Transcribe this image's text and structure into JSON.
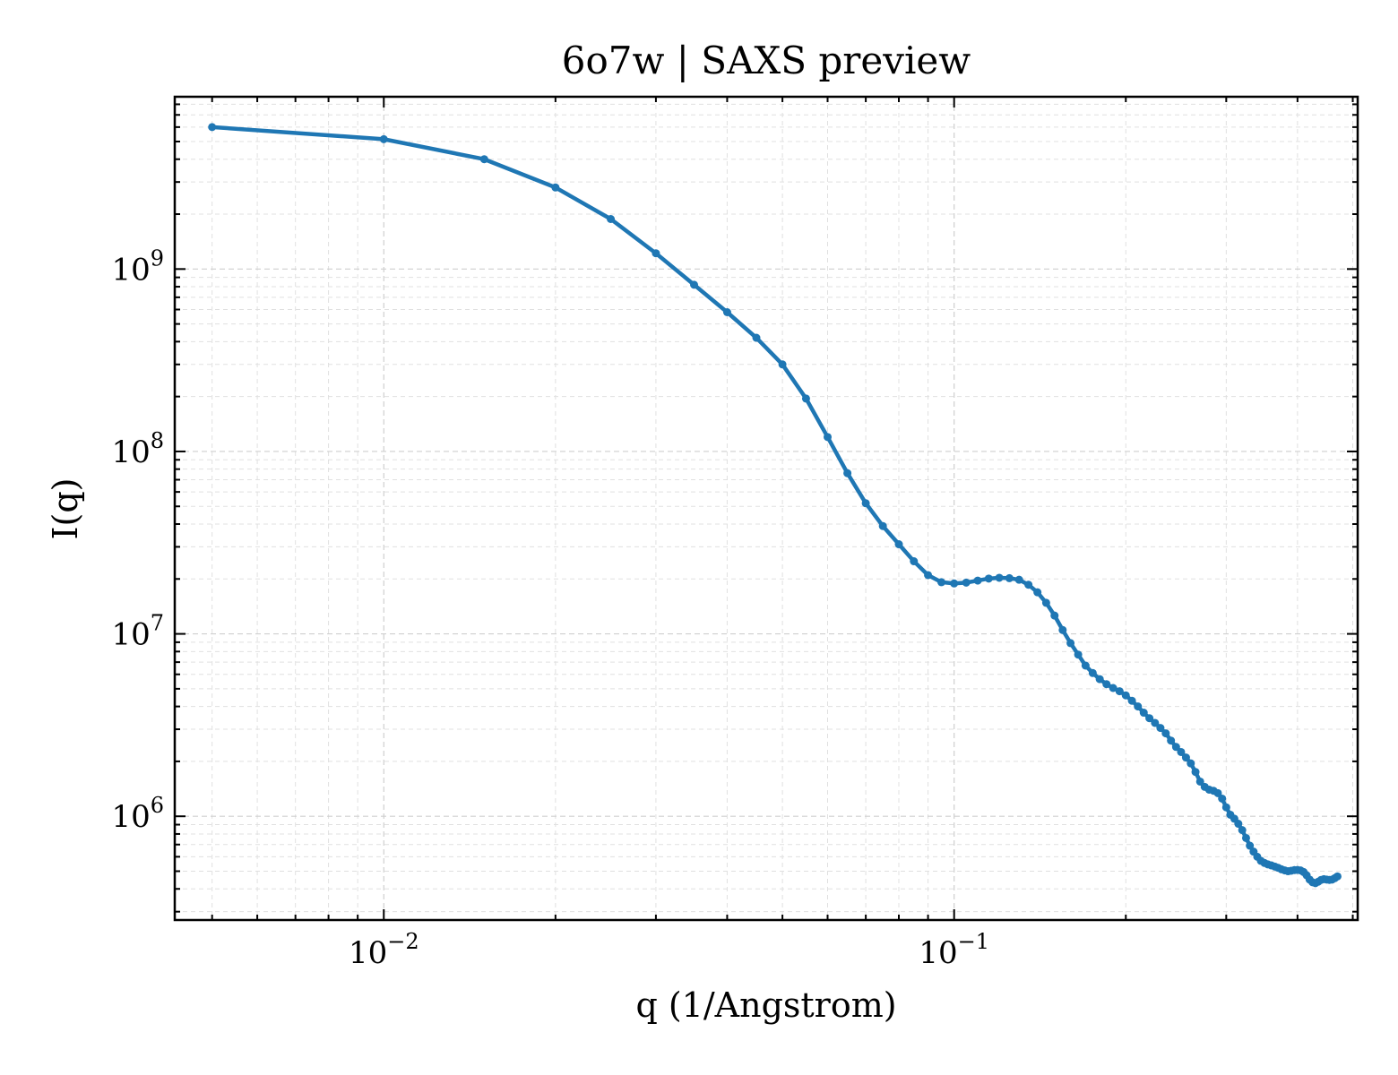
{
  "chart_data": {
    "type": "line",
    "title": "6o7w | SAXS preview",
    "xlabel": "q (1/Angstrom)",
    "ylabel": "I(q)",
    "xscale": "log",
    "yscale": "log",
    "xlim": [
      0.0043,
      0.51
    ],
    "ylim": [
      270000,
      8800000000
    ],
    "grid": true,
    "x_ticks": [
      {
        "value": 0.01,
        "base": "10",
        "exp": "−2"
      },
      {
        "value": 0.1,
        "base": "10",
        "exp": "−1"
      }
    ],
    "y_ticks": [
      {
        "value": 1000000,
        "base": "10",
        "exp": "6"
      },
      {
        "value": 10000000,
        "base": "10",
        "exp": "7"
      },
      {
        "value": 100000000,
        "base": "10",
        "exp": "8"
      },
      {
        "value": 1000000000,
        "base": "10",
        "exp": "9"
      }
    ],
    "colors": {
      "series": "#1f77b4",
      "grid": "#cfcfcf"
    },
    "series": [
      {
        "marker": "dot",
        "points": [
          [
            0.005,
            6000000000
          ],
          [
            0.01,
            5150000000
          ],
          [
            0.015,
            4000000000
          ],
          [
            0.02,
            2800000000
          ],
          [
            0.025,
            1880000000
          ],
          [
            0.03,
            1220000000
          ],
          [
            0.035,
            820000000
          ],
          [
            0.04,
            580000000
          ],
          [
            0.045,
            420000000
          ],
          [
            0.05,
            300000000
          ],
          [
            0.055,
            195000000
          ],
          [
            0.06,
            120000000
          ],
          [
            0.065,
            76000000
          ],
          [
            0.07,
            52000000
          ],
          [
            0.075,
            39000000
          ],
          [
            0.08,
            31000000
          ],
          [
            0.085,
            25000000
          ],
          [
            0.09,
            21000000
          ],
          [
            0.095,
            19200000
          ],
          [
            0.1,
            18900000
          ],
          [
            0.105,
            19100000
          ],
          [
            0.11,
            19600000
          ],
          [
            0.115,
            20100000
          ],
          [
            0.12,
            20300000
          ],
          [
            0.125,
            20200000
          ],
          [
            0.13,
            19800000
          ],
          [
            0.135,
            18600000
          ],
          [
            0.14,
            16900000
          ],
          [
            0.145,
            14800000
          ],
          [
            0.15,
            12600000
          ],
          [
            0.155,
            10500000
          ],
          [
            0.16,
            8900000
          ],
          [
            0.165,
            7700000
          ],
          [
            0.17,
            6700000
          ],
          [
            0.175,
            6100000
          ],
          [
            0.18,
            5650000
          ],
          [
            0.185,
            5300000
          ],
          [
            0.19,
            5050000
          ],
          [
            0.195,
            4850000
          ],
          [
            0.2,
            4600000
          ],
          [
            0.205,
            4300000
          ],
          [
            0.21,
            4000000
          ],
          [
            0.215,
            3700000
          ],
          [
            0.22,
            3450000
          ],
          [
            0.225,
            3250000
          ],
          [
            0.23,
            3050000
          ],
          [
            0.235,
            2850000
          ],
          [
            0.24,
            2600000
          ],
          [
            0.245,
            2400000
          ],
          [
            0.25,
            2250000
          ],
          [
            0.255,
            2100000
          ],
          [
            0.26,
            1950000
          ],
          [
            0.265,
            1750000
          ],
          [
            0.27,
            1550000
          ],
          [
            0.275,
            1450000
          ],
          [
            0.28,
            1400000
          ],
          [
            0.285,
            1380000
          ],
          [
            0.29,
            1340000
          ],
          [
            0.295,
            1250000
          ],
          [
            0.3,
            1120000
          ],
          [
            0.305,
            1020000
          ],
          [
            0.31,
            970000
          ],
          [
            0.315,
            910000
          ],
          [
            0.32,
            840000
          ],
          [
            0.325,
            760000
          ],
          [
            0.33,
            690000
          ],
          [
            0.335,
            640000
          ],
          [
            0.34,
            600000
          ],
          [
            0.345,
            570000
          ],
          [
            0.35,
            555000
          ],
          [
            0.355,
            545000
          ],
          [
            0.36,
            538000
          ],
          [
            0.365,
            530000
          ],
          [
            0.37,
            522000
          ],
          [
            0.375,
            512000
          ],
          [
            0.38,
            505000
          ],
          [
            0.385,
            500000
          ],
          [
            0.39,
            503000
          ],
          [
            0.395,
            507000
          ],
          [
            0.4,
            508000
          ],
          [
            0.405,
            505000
          ],
          [
            0.41,
            495000
          ],
          [
            0.415,
            475000
          ],
          [
            0.42,
            450000
          ],
          [
            0.425,
            435000
          ],
          [
            0.43,
            430000
          ],
          [
            0.435,
            438000
          ],
          [
            0.44,
            448000
          ],
          [
            0.445,
            452000
          ],
          [
            0.45,
            450000
          ],
          [
            0.455,
            448000
          ],
          [
            0.46,
            450000
          ],
          [
            0.465,
            458000
          ],
          [
            0.47,
            468000
          ]
        ]
      }
    ]
  }
}
